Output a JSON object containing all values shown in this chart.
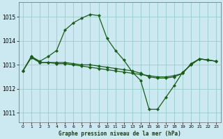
{
  "title": "Graphe pression niveau de la mer (hPa)",
  "background_color": "#cce8f0",
  "plot_bg_color": "#cce8f0",
  "grid_color": "#99cccc",
  "line_color": "#1a5c1a",
  "xlim": [
    -0.5,
    23.5
  ],
  "ylim": [
    1010.6,
    1015.6
  ],
  "yticks": [
    1011,
    1012,
    1013,
    1014,
    1015
  ],
  "xticks": [
    0,
    1,
    2,
    3,
    4,
    5,
    6,
    7,
    8,
    9,
    10,
    11,
    12,
    13,
    14,
    15,
    16,
    17,
    18,
    19,
    20,
    21,
    22,
    23
  ],
  "series": [
    [
      1012.75,
      1013.35,
      1013.15,
      1013.35,
      1013.6,
      1014.45,
      1014.75,
      1014.95,
      1015.1,
      1015.05,
      1014.1,
      1013.6,
      1013.2,
      1012.7,
      1012.35,
      1011.15,
      1011.15,
      1011.65,
      1012.15,
      1012.7,
      1013.0,
      1013.25,
      1013.2,
      1013.15
    ],
    [
      1012.75,
      1013.3,
      1013.1,
      1013.1,
      1013.05,
      1013.05,
      1013.0,
      1012.95,
      1012.9,
      1012.85,
      1012.8,
      1012.75,
      1012.7,
      1012.65,
      1012.6,
      1012.55,
      1012.5,
      1012.5,
      1012.55,
      1012.65,
      1013.05,
      1013.25,
      1013.2,
      1013.15
    ],
    [
      1012.75,
      1013.35,
      1013.1,
      1013.1,
      1013.1,
      1013.1,
      1013.05,
      1013.0,
      1013.0,
      1012.95,
      1012.9,
      1012.85,
      1012.8,
      1012.75,
      1012.65,
      1012.5,
      1012.45,
      1012.45,
      1012.5,
      1012.65,
      1013.05,
      1013.25,
      1013.2,
      1013.15
    ]
  ]
}
